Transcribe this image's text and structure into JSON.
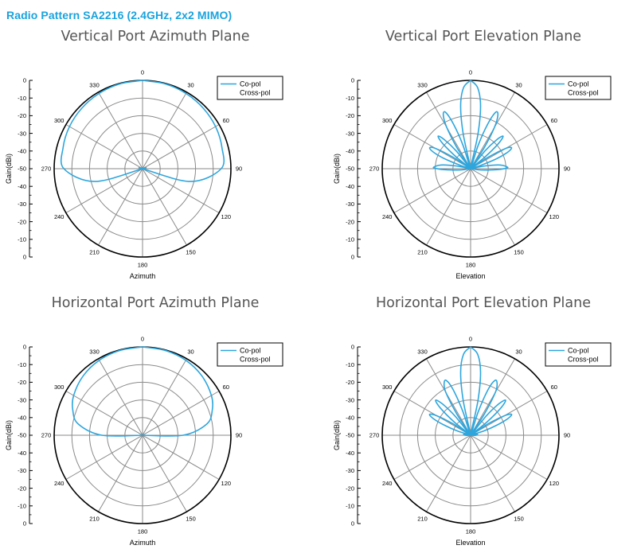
{
  "page": {
    "title": "Radio Pattern SA2216 (2.4GHz, 2x2 MIMO)"
  },
  "colors": {
    "title": "#1AA3DE",
    "copol": "#2EA6DD",
    "crosspol": "#000000",
    "grid": "#8A8A8A",
    "outer_circle": "#000000"
  },
  "chart_data": [
    {
      "type": "line",
      "subtype": "polar",
      "title": "Vertical Port Azimuth Plane",
      "xlabel": "Azimuth",
      "ylabel": "Gain(dBi)",
      "ylim": [
        -50,
        0
      ],
      "yticks": [
        "0",
        "-10",
        "-20",
        "-30",
        "-40",
        "-50",
        "-40",
        "-30",
        "-20",
        "-10",
        "0"
      ],
      "angle_labels": [
        "0",
        "30",
        "60",
        "90",
        "120",
        "150",
        "180",
        "210",
        "240",
        "270",
        "300",
        "330"
      ],
      "grid": true,
      "legend": {
        "position": "top-right",
        "entries": [
          "Co-pol",
          "Cross-pol"
        ]
      },
      "series": [
        {
          "name": "Co-pol",
          "angles": [
            0,
            15,
            30,
            45,
            60,
            75,
            90,
            105,
            120,
            135,
            150,
            165,
            180,
            195,
            210,
            225,
            240,
            255,
            270,
            285,
            300,
            315,
            330,
            345,
            360
          ],
          "values": [
            0,
            -0.3,
            -0.8,
            -1.5,
            -2.3,
            -3.5,
            -5.5,
            -22,
            -50,
            -50,
            -50,
            -50,
            -50,
            -50,
            -50,
            -50,
            -50,
            -22,
            -5.5,
            -3.5,
            -2.3,
            -1.5,
            -0.8,
            -0.3,
            0
          ]
        },
        {
          "name": "Cross-pol",
          "angles": [],
          "values": []
        }
      ]
    },
    {
      "type": "line",
      "subtype": "polar",
      "title": "Vertical Port Elevation Plane",
      "xlabel": "Elevation",
      "ylabel": "Gain(dBi)",
      "ylim": [
        -50,
        0
      ],
      "yticks": [
        "0",
        "-10",
        "-20",
        "-30",
        "-40",
        "-50",
        "-40",
        "-30",
        "-20",
        "-10",
        "0"
      ],
      "angle_labels": [
        "0",
        "30",
        "60",
        "90",
        "120",
        "150",
        "180",
        "210",
        "240",
        "270",
        "300",
        "330"
      ],
      "grid": true,
      "legend": {
        "position": "top-right",
        "entries": [
          "Co-pol",
          "Cross-pol"
        ]
      },
      "series": [
        {
          "name": "Co-pol",
          "angles": [
            0,
            5,
            9,
            12,
            15,
            18,
            21,
            24,
            27,
            30,
            33,
            36,
            39,
            42,
            45,
            48,
            51,
            54,
            57,
            60,
            63,
            66,
            69,
            72,
            75,
            79,
            83,
            88,
            90,
            92,
            97,
            101,
            105,
            108,
            180,
            252,
            255,
            259,
            263,
            268,
            270,
            272,
            277,
            281,
            285,
            288,
            291,
            294,
            297,
            300,
            303,
            306,
            309,
            312,
            315,
            318,
            321,
            324,
            327,
            330,
            333,
            336,
            339,
            342,
            345,
            348,
            351,
            355,
            360
          ],
          "values": [
            0,
            -4,
            -14,
            -30,
            -50,
            -36,
            -23,
            -15,
            -16,
            -23,
            -36,
            -50,
            -37,
            -28,
            -24,
            -29,
            -40,
            -50,
            -38,
            -27,
            -24,
            -27,
            -34,
            -44,
            -50,
            -42,
            -33,
            -29,
            -31,
            -35,
            -44,
            -50,
            -50,
            -50,
            -50,
            -50,
            -50,
            -50,
            -44,
            -35,
            -31,
            -29,
            -33,
            -42,
            -50,
            -44,
            -34,
            -27,
            -24,
            -27,
            -38,
            -50,
            -40,
            -29,
            -24,
            -28,
            -37,
            -50,
            -36,
            -23,
            -16,
            -15,
            -23,
            -36,
            -50,
            -30,
            -14,
            -4,
            0
          ]
        },
        {
          "name": "Cross-pol",
          "angles": [],
          "values": []
        }
      ]
    },
    {
      "type": "line",
      "subtype": "polar",
      "title": "Horizontal Port Azimuth Plane",
      "xlabel": "Azimuth",
      "ylabel": "Gain(dBi)",
      "ylim": [
        -50,
        0
      ],
      "yticks": [
        "0",
        "-10",
        "-20",
        "-30",
        "-40",
        "-50",
        "-40",
        "-30",
        "-20",
        "-10",
        "0"
      ],
      "angle_labels": [
        "0",
        "30",
        "60",
        "90",
        "120",
        "150",
        "180",
        "210",
        "240",
        "270",
        "300",
        "330"
      ],
      "grid": true,
      "legend": {
        "position": "top-right",
        "entries": [
          "Co-pol",
          "Cross-pol"
        ]
      },
      "series": [
        {
          "name": "Co-pol",
          "angles": [
            0,
            15,
            30,
            45,
            60,
            70,
            80,
            90,
            98,
            110,
            125,
            140,
            160,
            180,
            200,
            220,
            235,
            250,
            262,
            270,
            280,
            290,
            300,
            315,
            330,
            345,
            360
          ],
          "values": [
            0,
            -0.3,
            -1,
            -2.5,
            -5,
            -8,
            -13,
            -27,
            -50,
            -50,
            -50,
            -50,
            -50,
            -50,
            -50,
            -50,
            -50,
            -50,
            -50,
            -27,
            -13,
            -8,
            -5,
            -2.5,
            -1,
            -0.3,
            0
          ]
        },
        {
          "name": "Cross-pol",
          "angles": [],
          "values": []
        }
      ]
    },
    {
      "type": "line",
      "subtype": "polar",
      "title": "Horizontal Port Elevation Plane",
      "xlabel": "Elevation",
      "ylabel": "Gain(dBi)",
      "ylim": [
        -50,
        0
      ],
      "yticks": [
        "0",
        "-10",
        "-20",
        "-30",
        "-40",
        "-50",
        "-40",
        "-30",
        "-20",
        "-10",
        "0"
      ],
      "angle_labels": [
        "0",
        "30",
        "60",
        "90",
        "120",
        "150",
        "180",
        "210",
        "240",
        "270",
        "300",
        "330"
      ],
      "grid": true,
      "legend": {
        "position": "top-right",
        "entries": [
          "Co-pol",
          "Cross-pol"
        ]
      },
      "series": [
        {
          "name": "Co-pol",
          "angles": [
            0,
            5,
            9,
            12,
            15,
            18,
            21,
            24,
            27,
            30,
            33,
            36,
            39,
            42,
            45,
            48,
            51,
            54,
            57,
            60,
            63,
            66,
            69,
            72,
            75,
            79,
            84,
            88,
            90,
            92,
            98,
            108,
            180,
            252,
            262,
            268,
            270,
            272,
            276,
            281,
            285,
            288,
            291,
            294,
            297,
            300,
            303,
            306,
            309,
            312,
            315,
            318,
            321,
            324,
            327,
            330,
            333,
            336,
            339,
            342,
            345,
            348,
            351,
            355,
            360
          ],
          "values": [
            0,
            -4,
            -14,
            -30,
            -50,
            -36,
            -22,
            -16,
            -17,
            -22,
            -36,
            -50,
            -36,
            -26,
            -22,
            -27,
            -38,
            -50,
            -38,
            -28,
            -24,
            -27,
            -34,
            -42,
            -50,
            -47,
            -46,
            -46.5,
            -47,
            -47.5,
            -50,
            -50,
            -50,
            -50,
            -50,
            -47.5,
            -47,
            -46.5,
            -46,
            -47,
            -50,
            -42,
            -34,
            -27,
            -24,
            -28,
            -38,
            -50,
            -38,
            -27,
            -22,
            -26,
            -36,
            -50,
            -36,
            -22,
            -17,
            -16,
            -22,
            -36,
            -50,
            -30,
            -14,
            -4,
            0
          ]
        },
        {
          "name": "Cross-pol",
          "angles": [],
          "values": []
        }
      ]
    }
  ]
}
